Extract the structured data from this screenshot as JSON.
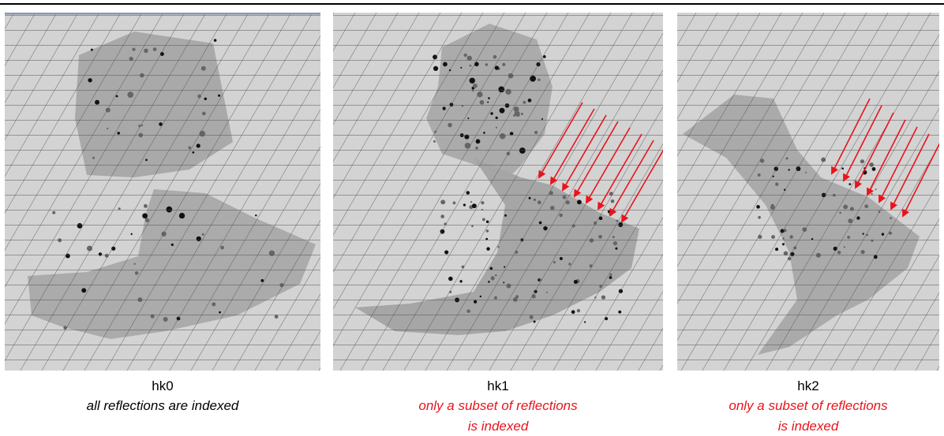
{
  "panels": [
    {
      "title": "hk0",
      "caption": [
        "all reflections are indexed"
      ]
    },
    {
      "title": "hk1",
      "caption": [
        "only a subset of reflections",
        "is indexed"
      ]
    },
    {
      "title": "hk2",
      "caption": [
        "only a subset of reflections",
        "is indexed"
      ]
    }
  ]
}
